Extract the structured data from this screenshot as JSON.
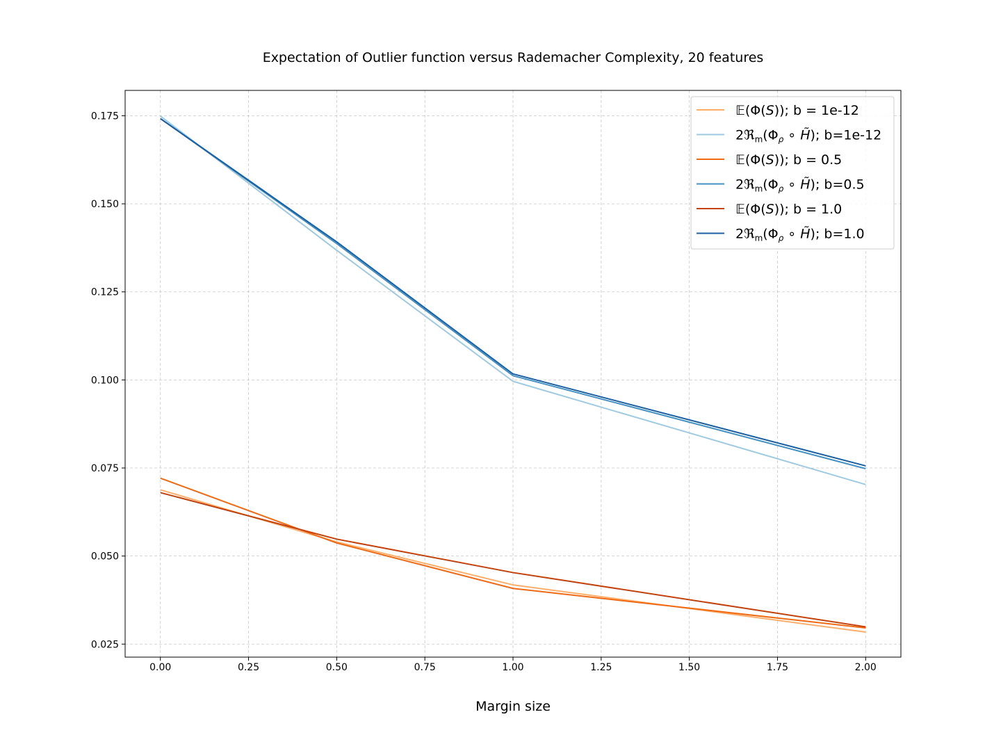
{
  "chart_data": {
    "type": "line",
    "title": "Expectation of Outlier function versus Rademacher Complexity, 20 features",
    "xlabel": "Margin size",
    "ylabel": "",
    "xlim": [
      -0.1,
      2.1
    ],
    "ylim": [
      0.0213,
      0.1822
    ],
    "x_ticks": [
      "0.00",
      "0.25",
      "0.50",
      "0.75",
      "1.00",
      "1.25",
      "1.50",
      "1.75",
      "2.00"
    ],
    "y_ticks": [
      "0.025",
      "0.050",
      "0.075",
      "0.100",
      "0.125",
      "0.150",
      "0.175"
    ],
    "grid": true,
    "legend_position": "top-right",
    "x": [
      0.0,
      0.5,
      1.0,
      2.0
    ],
    "series": [
      {
        "name": "𝔼(Φ(S)); b = 1e-12",
        "name_parts": [
          "𝔼(Φ(",
          "S",
          ")); b = 1e-12"
        ],
        "color": "#fdae6b",
        "values": [
          0.0688,
          0.054,
          0.0418,
          0.0284
        ]
      },
      {
        "name": "2ℜₘ(Φρ ∘ H̃); b=1e-12",
        "suffix": "; b=1e-12",
        "color": "#9ecae1",
        "values": [
          0.1749,
          0.1368,
          0.0996,
          0.0703
        ]
      },
      {
        "name": "𝔼(Φ(S)); b = 0.5",
        "name_parts": [
          "𝔼(Φ(",
          "S",
          ")); b = 0.5"
        ],
        "color": "#f16913",
        "values": [
          0.0721,
          0.0537,
          0.0408,
          0.0296
        ]
      },
      {
        "name": "2ℜₘ(Φρ ∘ H̃); b=0.5",
        "suffix": "; b=0.5",
        "color": "#4292c6",
        "values": [
          0.1742,
          0.1387,
          0.1012,
          0.0748
        ]
      },
      {
        "name": "𝔼(Φ(S)); b = 1.0",
        "name_parts": [
          "𝔼(Φ(",
          "S",
          ")); b = 1.0"
        ],
        "color": "#c2410c",
        "values": [
          0.068,
          0.0548,
          0.0453,
          0.0299
        ]
      },
      {
        "name": "2ℜₘ(Φρ ∘ H̃); b=1.0",
        "suffix": "; b=1.0",
        "color": "#1c5e9f",
        "values": [
          0.1742,
          0.1392,
          0.1017,
          0.0756
        ]
      }
    ]
  }
}
